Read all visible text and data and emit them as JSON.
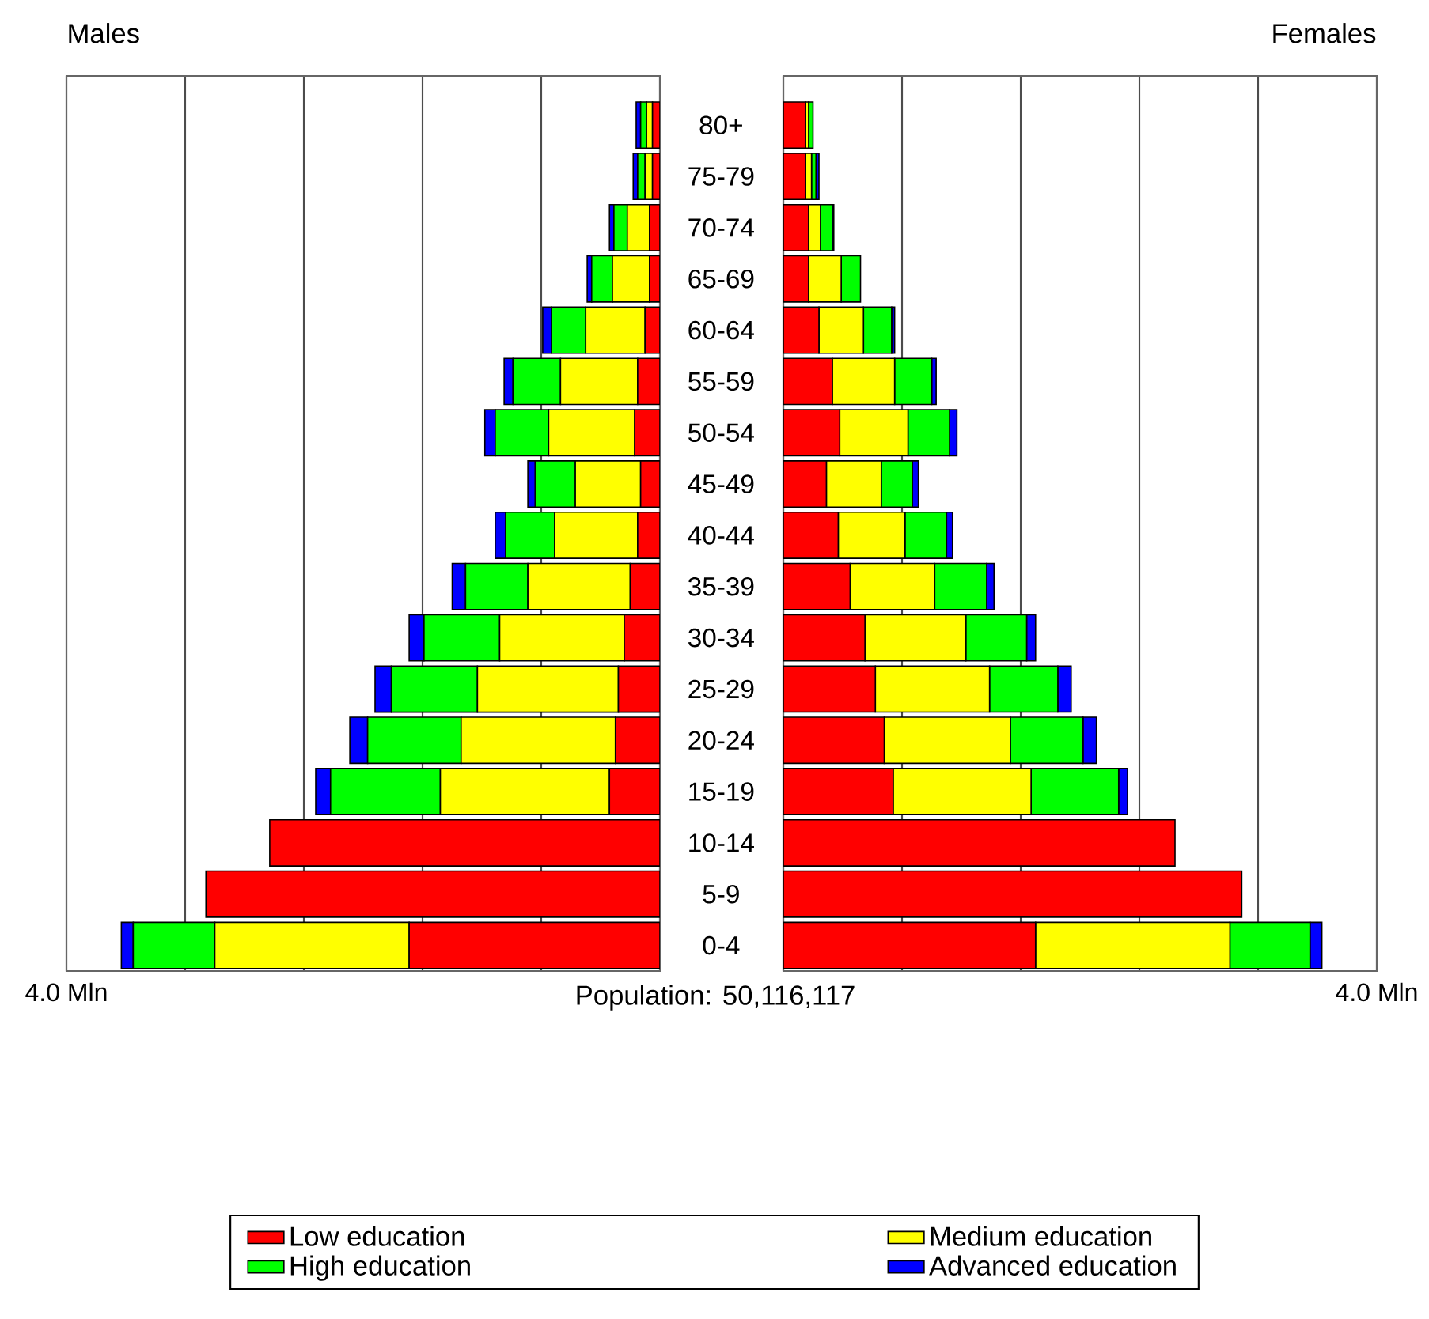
{
  "chart_data": [
    {
      "type": "bar",
      "orientation": "horizontal",
      "stacked": true,
      "title": "Males",
      "categories": [
        "80+",
        "75-79",
        "70-74",
        "65-69",
        "60-64",
        "55-59",
        "50-54",
        "45-49",
        "40-44",
        "35-39",
        "30-34",
        "25-29",
        "20-24",
        "15-19",
        "10-14",
        "5-9",
        "0-4"
      ],
      "series": [
        {
          "name": "Low education",
          "color": "#ff0000",
          "values": [
            0.05,
            0.05,
            0.07,
            0.07,
            0.1,
            0.15,
            0.17,
            0.13,
            0.15,
            0.2,
            0.24,
            0.28,
            0.3,
            0.34,
            2.63,
            3.06,
            1.69
          ]
        },
        {
          "name": "Medium education",
          "color": "#ffff00",
          "values": [
            0.04,
            0.05,
            0.15,
            0.25,
            0.4,
            0.52,
            0.58,
            0.44,
            0.56,
            0.69,
            0.84,
            0.95,
            1.04,
            1.14,
            null,
            null,
            1.31
          ]
        },
        {
          "name": "High education",
          "color": "#00ff00",
          "values": [
            0.04,
            0.05,
            0.09,
            0.14,
            0.23,
            0.32,
            0.36,
            0.27,
            0.33,
            0.42,
            0.51,
            0.58,
            0.63,
            0.74,
            null,
            null,
            0.55
          ]
        },
        {
          "name": "Advanced education",
          "color": "#0000ff",
          "values": [
            0.03,
            0.03,
            0.03,
            0.03,
            0.06,
            0.06,
            0.07,
            0.05,
            0.07,
            0.09,
            0.1,
            0.11,
            0.12,
            0.1,
            null,
            null,
            0.08
          ]
        }
      ],
      "xlim": [
        4,
        0
      ],
      "xticks": [
        {
          "value": 4,
          "label": "4.0 Mln"
        },
        {
          "value": 3.2,
          "label": null
        },
        {
          "value": 2.4,
          "label": null
        },
        {
          "value": 1.6,
          "label": null
        },
        {
          "value": 0.8,
          "label": null
        },
        {
          "value": 0,
          "label": null
        }
      ],
      "grid": "x",
      "legend": "bottom",
      "annotations": [
        "Population: 50,116,117"
      ]
    },
    {
      "type": "bar",
      "orientation": "horizontal",
      "stacked": true,
      "title": "Females",
      "categories": [
        null,
        null,
        null,
        null,
        null,
        null,
        null,
        null,
        null,
        null,
        null,
        null,
        null,
        null,
        null,
        null,
        null
      ],
      "series": [
        {
          "color": "#ff0000",
          "values": [
            0.15,
            0.15,
            0.17,
            0.17,
            0.24,
            0.33,
            0.38,
            0.29,
            0.37,
            0.45,
            0.55,
            0.62,
            0.68,
            0.74,
            2.64,
            3.09,
            1.7
          ]
        },
        {
          "color": "#ffff00",
          "values": [
            0.02,
            0.04,
            0.08,
            0.22,
            0.3,
            0.42,
            0.46,
            0.37,
            0.45,
            0.57,
            0.68,
            0.77,
            0.85,
            0.93,
            null,
            null,
            1.31
          ]
        },
        {
          "color": "#00ff00",
          "values": [
            0.03,
            0.03,
            0.08,
            0.13,
            0.19,
            0.25,
            0.28,
            0.21,
            0.28,
            0.35,
            0.41,
            0.46,
            0.49,
            0.59,
            null,
            null,
            0.54
          ]
        },
        {
          "color": "#0000ff",
          "values": [
            null,
            0.02,
            0.01,
            null,
            0.02,
            0.03,
            0.05,
            0.04,
            0.04,
            0.05,
            0.06,
            0.09,
            0.09,
            0.06,
            null,
            null,
            0.08
          ]
        }
      ],
      "xlim": [
        0,
        4
      ],
      "xticks": [
        {
          "value": 0,
          "label": null
        },
        {
          "value": 0.8,
          "label": null
        },
        {
          "value": 1.6,
          "label": null
        },
        {
          "value": 2.4,
          "label": null
        },
        {
          "value": 3.2,
          "label": null
        },
        {
          "value": 4,
          "label": "4.0 Mln"
        }
      ],
      "grid": "x",
      "tick_labels": "x"
    }
  ]
}
